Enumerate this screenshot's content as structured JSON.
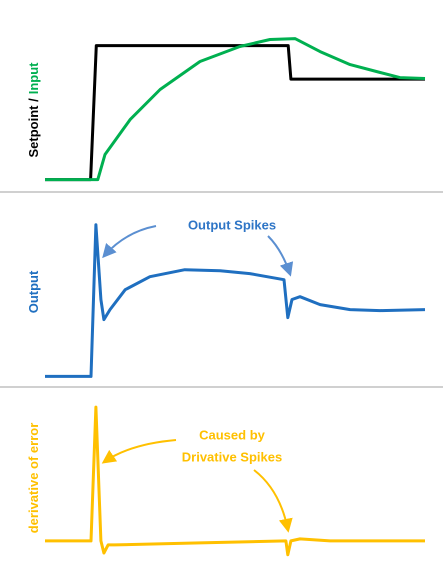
{
  "chart_data": [
    {
      "type": "line",
      "xlim": [
        0,
        100
      ],
      "ylim": [
        -10,
        134
      ],
      "ylabel": [
        {
          "text": "Setpoint /",
          "color": "#000000"
        },
        {
          "text": "Input",
          "color": "#00b050"
        }
      ],
      "series": [
        {
          "color": "#000000",
          "x": [
            0,
            12,
            13.5,
            64,
            64.7,
            100
          ],
          "values": [
            0,
            0,
            100,
            100,
            75,
            75
          ]
        },
        {
          "color": "#00b050",
          "x": [
            0,
            13.9,
            15.8,
            22.4,
            30.3,
            40.8,
            51.3,
            59.2,
            65.8,
            72.4,
            80.3,
            88.2,
            93.4,
            100
          ],
          "values": [
            0,
            0,
            18.7,
            44.8,
            67.2,
            88.1,
            99.3,
            104.5,
            105.2,
            95.5,
            85.8,
            79.9,
            76.1,
            75.4
          ]
        }
      ]
    },
    {
      "type": "line",
      "xlim": [
        0,
        100
      ],
      "ylim": [
        -7,
        121
      ],
      "ylabel": [
        {
          "text": "Output",
          "color": "#1f6fc0"
        }
      ],
      "annotations": [
        {
          "text": "Output Spikes",
          "color": "#2e75c6"
        }
      ],
      "series": [
        {
          "color": "#1f6fc0",
          "x": [
            0,
            12.1,
            13.4,
            14.7,
            15.5,
            17.1,
            21.1,
            27.6,
            36.8,
            46.1,
            53.9,
            62.9,
            63.9,
            65,
            67.1,
            72.4,
            80.3,
            88.2,
            100
          ],
          "values": [
            0,
            0,
            100,
            50.7,
            37.5,
            44.1,
            57.2,
            65.8,
            70.4,
            69.7,
            67.8,
            63.8,
            38.8,
            50.7,
            52.6,
            47.4,
            44.1,
            43.4,
            44.1
          ]
        }
      ]
    },
    {
      "type": "line",
      "xlim": [
        0,
        100
      ],
      "ylim": [
        -15,
        115
      ],
      "ylabel": [
        {
          "text": "derivative of error",
          "color": "#ffc000"
        }
      ],
      "annotations": [
        {
          "text": "Caused by",
          "color": "#ffc000"
        },
        {
          "text": "Drivative Spikes",
          "color": "#ffc000"
        }
      ],
      "series": [
        {
          "color": "#ffc000",
          "x": [
            0,
            12.1,
            13.4,
            14.7,
            15.5,
            16.6,
            18.4,
            40.8,
            63.4,
            63.9,
            64.7,
            67.1,
            75,
            100
          ],
          "values": [
            0,
            0,
            100,
            0,
            -9,
            -3,
            -3,
            -1.5,
            0,
            -10.4,
            0,
            1.5,
            0,
            0
          ]
        }
      ]
    }
  ]
}
